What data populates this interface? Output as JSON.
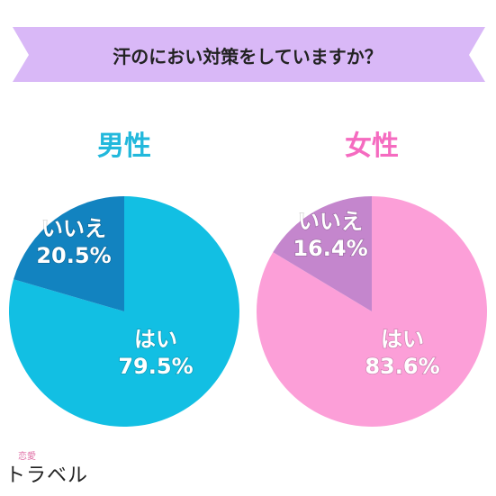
{
  "title": "汗のにおい対策をしていますか？",
  "colors": {
    "banner": "#d9b8f7",
    "male_yes": "#12bfe3",
    "male_no": "#1283c0",
    "female_yes": "#fc9fd8",
    "female_no": "#c486cd",
    "male_label": "#22b8dc",
    "female_label": "#f56bc0"
  },
  "chart_data": [
    {
      "type": "pie",
      "title": "男性",
      "slices": [
        {
          "label": "はい",
          "value": 79.5,
          "value_text": "79.5%"
        },
        {
          "label": "いいえ",
          "value": 20.5,
          "value_text": "20.5%"
        }
      ]
    },
    {
      "type": "pie",
      "title": "女性",
      "slices": [
        {
          "label": "はい",
          "value": 83.6,
          "value_text": "83.6%"
        },
        {
          "label": "いいえ",
          "value": 16.4,
          "value_text": "16.4%"
        }
      ]
    }
  ],
  "logo": {
    "small": "恋愛",
    "big": "トラベル"
  }
}
